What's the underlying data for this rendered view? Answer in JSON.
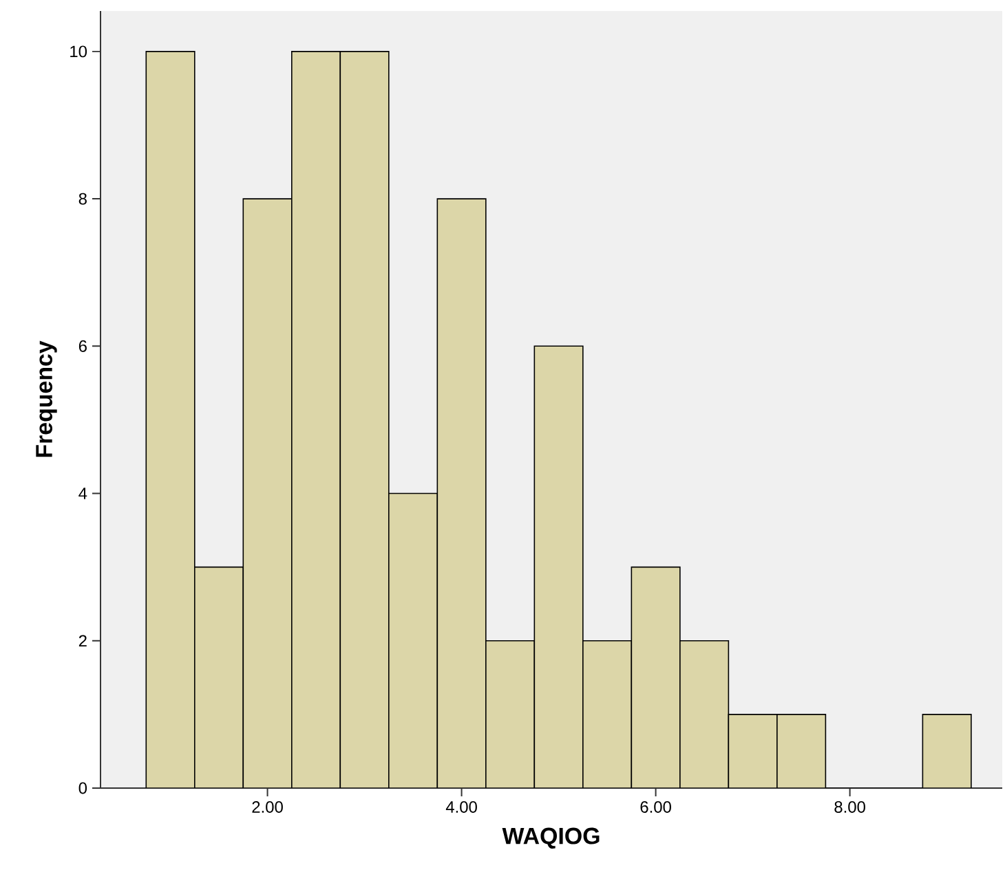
{
  "chart_data": {
    "type": "histogram",
    "xlabel": "WAQIOG",
    "ylabel": "Frequency",
    "bins": [
      0.75,
      1.25,
      1.75,
      2.25,
      2.75,
      3.25,
      3.75,
      4.25,
      4.75,
      5.25,
      5.75,
      6.25,
      6.75,
      7.25,
      7.75,
      8.25,
      8.75,
      9.25
    ],
    "values": [
      10,
      3,
      8,
      10,
      10,
      4,
      8,
      2,
      6,
      2,
      3,
      2,
      1,
      1,
      0,
      0,
      1
    ],
    "color": "#dcd6a8",
    "xlim": [
      0.28,
      9.57
    ],
    "ylim": [
      0,
      10.55
    ],
    "xticks": [
      {
        "value": 2,
        "label": "2.00"
      },
      {
        "value": 4,
        "label": "4.00"
      },
      {
        "value": 6,
        "label": "6.00"
      },
      {
        "value": 8,
        "label": "8.00"
      }
    ],
    "yticks": [
      0,
      2,
      4,
      6,
      8,
      10
    ],
    "grid": false
  }
}
